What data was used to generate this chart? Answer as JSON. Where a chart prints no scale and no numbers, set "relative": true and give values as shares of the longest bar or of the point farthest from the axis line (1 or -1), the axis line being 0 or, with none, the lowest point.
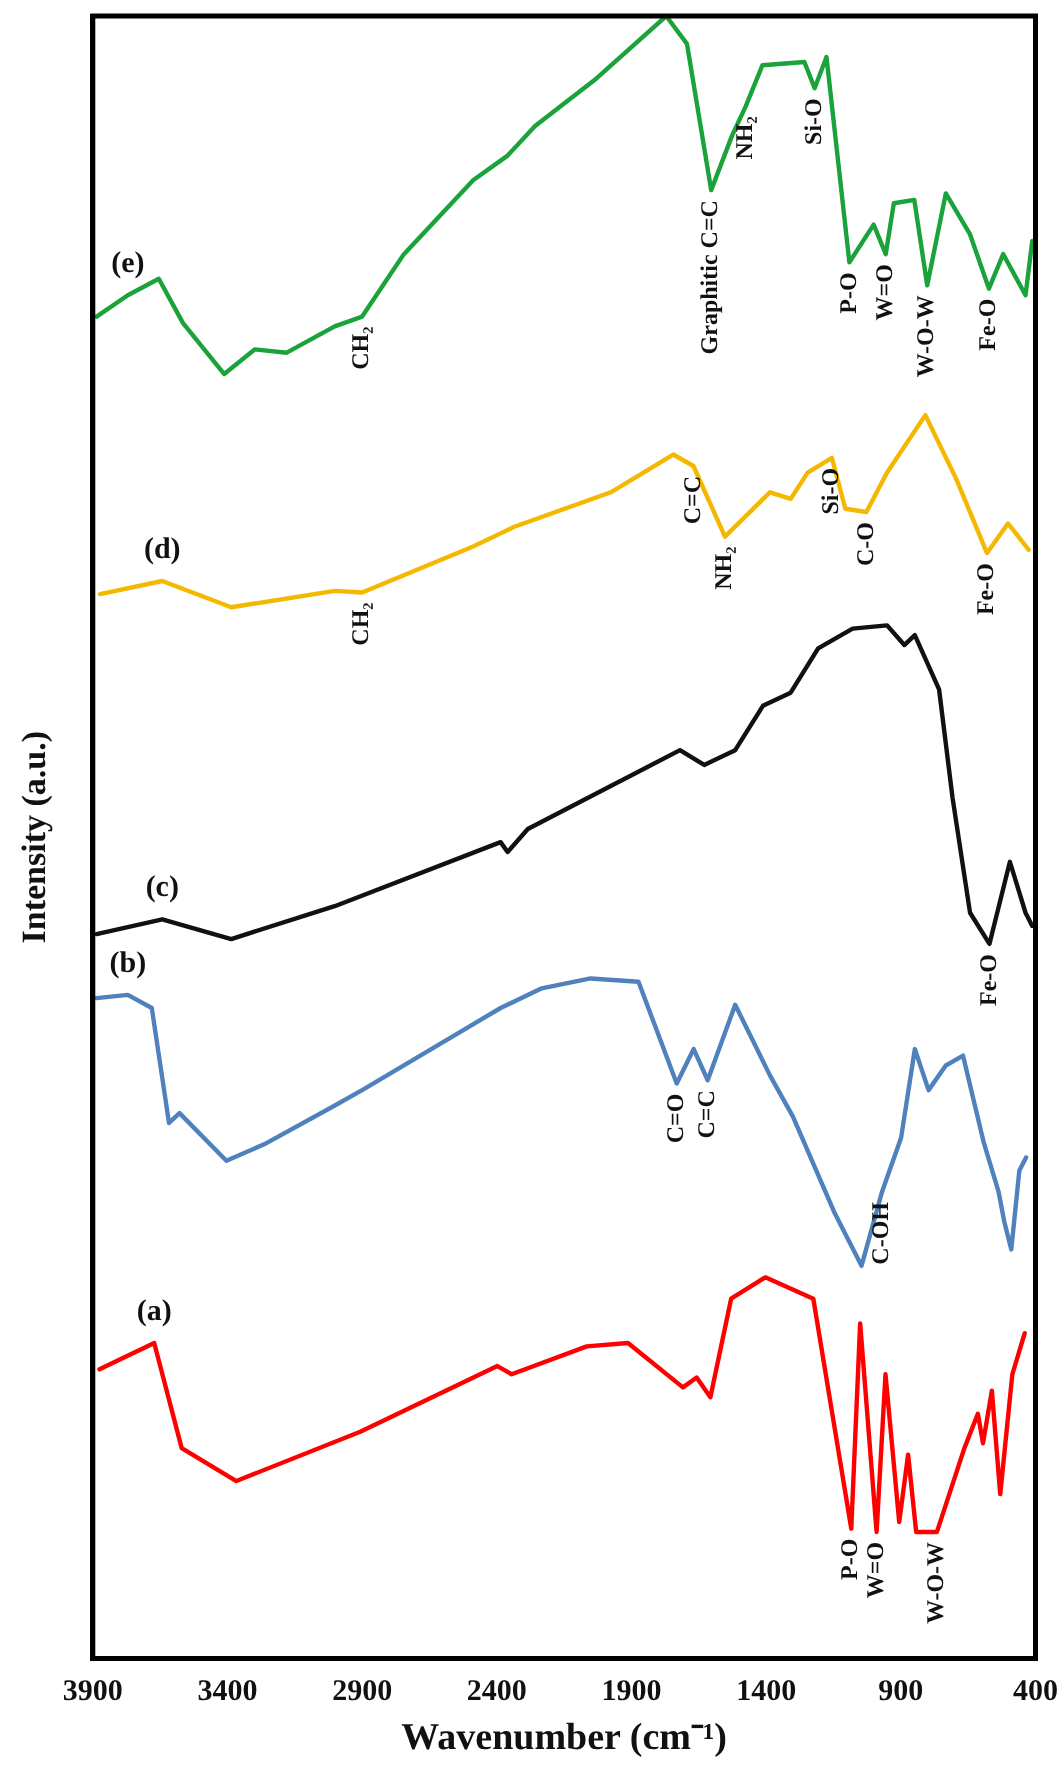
{
  "chart_data": {
    "type": "line",
    "xlabel": "Wavenumber (cm⁻¹)",
    "ylabel": "Intensity (a.u.)",
    "relative": true,
    "xlim": [
      3900,
      400
    ],
    "xticks": [
      3900,
      3400,
      2900,
      2400,
      1900,
      1400,
      900,
      400
    ],
    "grid": false,
    "legend": false,
    "marker": "none",
    "line_style": "solid",
    "series": [
      {
        "name": "(a)",
        "color": "#ff0000",
        "x": [
          3875,
          3672,
          3570,
          3367,
          2907,
          2398,
          2345,
          2066,
          1913,
          1709,
          1658,
          1607,
          1530,
          1403,
          1225,
          1084,
          1051,
          990,
          957,
          906,
          873,
          843,
          766,
          664,
          614,
          595,
          562,
          531,
          486,
          440
        ],
        "values": [
          0.176,
          0.192,
          0.128,
          0.108,
          0.138,
          0.178,
          0.173,
          0.19,
          0.192,
          0.165,
          0.171,
          0.159,
          0.219,
          0.232,
          0.219,
          0.079,
          0.204,
          0.077,
          0.173,
          0.083,
          0.124,
          0.077,
          0.077,
          0.128,
          0.149,
          0.131,
          0.163,
          0.1,
          0.173,
          0.198
        ]
      },
      {
        "name": "(b)",
        "color": "#4f81bd",
        "x": [
          3886,
          3770,
          3681,
          3617,
          3578,
          3404,
          3264,
          3008,
          2900,
          2386,
          2233,
          2052,
          1874,
          1732,
          1669,
          1617,
          1515,
          1386,
          1301,
          1148,
          1046,
          970,
          899,
          848,
          797,
          733,
          669,
          592,
          537,
          516,
          490,
          460,
          435
        ],
        "values": [
          0.402,
          0.404,
          0.396,
          0.326,
          0.332,
          0.303,
          0.313,
          0.336,
          0.346,
          0.396,
          0.408,
          0.414,
          0.412,
          0.35,
          0.371,
          0.352,
          0.398,
          0.355,
          0.33,
          0.272,
          0.239,
          0.284,
          0.317,
          0.371,
          0.346,
          0.361,
          0.367,
          0.314,
          0.284,
          0.266,
          0.249,
          0.297,
          0.305
        ]
      },
      {
        "name": "(c)",
        "color": "#111111",
        "x": [
          3886,
          3642,
          3386,
          3002,
          2386,
          2360,
          2285,
          1720,
          1630,
          1515,
          1412,
          1309,
          1207,
          1079,
          951,
          887,
          848,
          758,
          708,
          643,
          571,
          495,
          437,
          412
        ],
        "values": [
          0.441,
          0.45,
          0.438,
          0.458,
          0.497,
          0.491,
          0.505,
          0.553,
          0.544,
          0.553,
          0.58,
          0.588,
          0.615,
          0.627,
          0.629,
          0.617,
          0.623,
          0.59,
          0.524,
          0.454,
          0.435,
          0.485,
          0.454,
          0.446
        ]
      },
      {
        "name": "(d)",
        "color": "#f5b800",
        "x": [
          3873,
          3642,
          3386,
          3002,
          2900,
          2488,
          2335,
          1977,
          1745,
          1670,
          1553,
          1386,
          1309,
          1246,
          1156,
          1106,
          1028,
          951,
          809,
          694,
          580,
          502,
          425
        ],
        "values": [
          0.648,
          0.656,
          0.64,
          0.65,
          0.649,
          0.677,
          0.689,
          0.71,
          0.733,
          0.726,
          0.683,
          0.71,
          0.706,
          0.722,
          0.731,
          0.7,
          0.698,
          0.722,
          0.757,
          0.718,
          0.673,
          0.691,
          0.675
        ]
      },
      {
        "name": "(e)",
        "color": "#1aa33a",
        "x": [
          3886,
          3770,
          3655,
          3565,
          3412,
          3299,
          3180,
          3002,
          2900,
          2745,
          2488,
          2360,
          2258,
          2030,
          1771,
          1694,
          1604,
          1527,
          1476,
          1414,
          1258,
          1220,
          1176,
          1091,
          1001,
          956,
          926,
          850,
          802,
          733,
          643,
          573,
          520,
          437,
          412
        ],
        "values": [
          0.817,
          0.83,
          0.84,
          0.813,
          0.782,
          0.797,
          0.795,
          0.811,
          0.817,
          0.855,
          0.9,
          0.915,
          0.933,
          0.962,
          1.0,
          0.983,
          0.894,
          0.927,
          0.945,
          0.97,
          0.972,
          0.956,
          0.975,
          0.85,
          0.873,
          0.855,
          0.886,
          0.888,
          0.836,
          0.892,
          0.867,
          0.834,
          0.855,
          0.83,
          0.863
        ]
      }
    ],
    "annotations": [
      {
        "text": "CH₂",
        "x": 2900,
        "y": 0.817
      },
      {
        "text": "Graphitic C=C",
        "x": 1604,
        "y": 0.894
      },
      {
        "text": "NH₂",
        "x": 1476,
        "y": 0.945
      },
      {
        "text": "Si-O",
        "x": 1220,
        "y": 0.956
      },
      {
        "text": "P-O",
        "x": 1091,
        "y": 0.85
      },
      {
        "text": "W=O",
        "x": 956,
        "y": 0.855
      },
      {
        "text": "W-O-W",
        "x": 802,
        "y": 0.836
      },
      {
        "text": "Fe-O",
        "x": 573,
        "y": 0.834
      },
      {
        "text": "CH₂",
        "x": 2900,
        "y": 0.649
      },
      {
        "text": "C=C",
        "x": 1670,
        "y": 0.726
      },
      {
        "text": "NH₂",
        "x": 1553,
        "y": 0.683
      },
      {
        "text": "Si-O",
        "x": 1156,
        "y": 0.731
      },
      {
        "text": "C-O",
        "x": 1028,
        "y": 0.698
      },
      {
        "text": "Fe-O",
        "x": 580,
        "y": 0.673
      },
      {
        "text": "Fe-O",
        "x": 571,
        "y": 0.435
      },
      {
        "text": "C=O",
        "x": 1732,
        "y": 0.35
      },
      {
        "text": "C=C",
        "x": 1617,
        "y": 0.352
      },
      {
        "text": "C-OH",
        "x": 970,
        "y": 0.284
      },
      {
        "text": "P-O",
        "x": 1084,
        "y": 0.079
      },
      {
        "text": "W=O",
        "x": 990,
        "y": 0.077
      },
      {
        "text": "W-O-W",
        "x": 766,
        "y": 0.077
      }
    ]
  }
}
